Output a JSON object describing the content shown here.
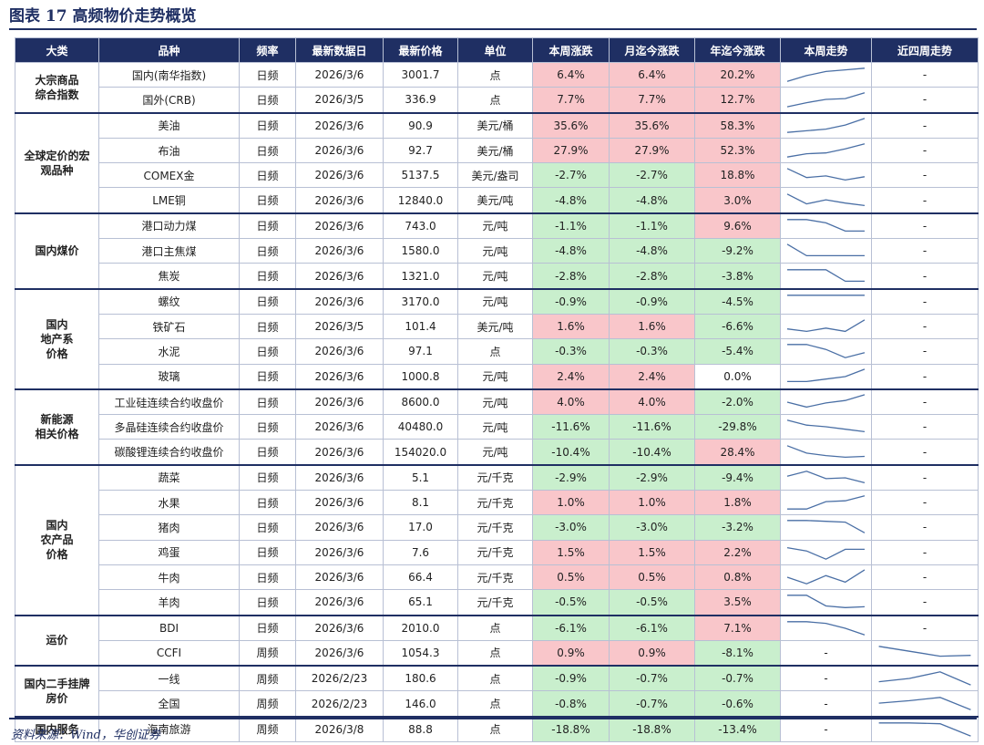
{
  "title": "图表 17   高频物价走势概览",
  "source": "资料来源：Wind，华创证券",
  "colors": {
    "header_bg": "#1f2f63",
    "positive": "#f9c6ca",
    "negative": "#c9efcd",
    "line": "#4a6fa5"
  },
  "headers": [
    "大类",
    "品种",
    "频率",
    "最新数据日",
    "最新价格",
    "单位",
    "本周涨跌",
    "月迄今涨跌",
    "年迄今涨跌",
    "本周走势",
    "近四周走势"
  ],
  "groups": [
    {
      "name": "大宗商品\n综合指数",
      "rows": [
        {
          "item": "国内(南华指数)",
          "freq": "日频",
          "date": "2026/3/6",
          "price": "3001.7",
          "unit": "点",
          "week": "6.4%",
          "month": "6.4%",
          "ytd": "20.2%",
          "week_trend": [
            0.1,
            0.45,
            0.7,
            0.8,
            0.9
          ],
          "four_week": "-"
        },
        {
          "item": "国外(CRB)",
          "freq": "日频",
          "date": "2026/3/5",
          "price": "336.9",
          "unit": "点",
          "week": "7.7%",
          "month": "7.7%",
          "ytd": "12.7%",
          "week_trend": [
            0.05,
            0.3,
            0.5,
            0.55,
            0.9
          ],
          "four_week": "-"
        }
      ]
    },
    {
      "name": "全球定价的宏\n观品种",
      "rows": [
        {
          "item": "美油",
          "freq": "日频",
          "date": "2026/3/6",
          "price": "90.9",
          "unit": "美元/桶",
          "week": "35.6%",
          "month": "35.6%",
          "ytd": "58.3%",
          "week_trend": [
            0.1,
            0.2,
            0.3,
            0.55,
            0.95
          ],
          "four_week": "-"
        },
        {
          "item": "布油",
          "freq": "日频",
          "date": "2026/3/6",
          "price": "92.7",
          "unit": "美元/桶",
          "week": "27.9%",
          "month": "27.9%",
          "ytd": "52.3%",
          "week_trend": [
            0.1,
            0.3,
            0.35,
            0.6,
            0.9
          ],
          "four_week": "-"
        },
        {
          "item": "COMEX金",
          "freq": "日频",
          "date": "2026/3/6",
          "price": "5137.5",
          "unit": "美元/盎司",
          "week": "-2.7%",
          "month": "-2.7%",
          "ytd": "18.8%",
          "week_trend": [
            0.9,
            0.35,
            0.45,
            0.2,
            0.4
          ],
          "four_week": "-"
        },
        {
          "item": "LME铜",
          "freq": "日频",
          "date": "2026/3/6",
          "price": "12840.0",
          "unit": "美元/吨",
          "week": "-4.8%",
          "month": "-4.8%",
          "ytd": "3.0%",
          "week_trend": [
            0.9,
            0.3,
            0.55,
            0.35,
            0.2
          ],
          "four_week": "-"
        }
      ]
    },
    {
      "name": "国内煤价",
      "rows": [
        {
          "item": "港口动力煤",
          "freq": "日频",
          "date": "2026/3/6",
          "price": "743.0",
          "unit": "元/吨",
          "week": "-1.1%",
          "month": "-1.1%",
          "ytd": "9.6%",
          "week_trend": [
            0.9,
            0.9,
            0.7,
            0.2,
            0.2
          ],
          "four_week": "-"
        },
        {
          "item": "港口主焦煤",
          "freq": "日频",
          "date": "2026/3/6",
          "price": "1580.0",
          "unit": "元/吨",
          "week": "-4.8%",
          "month": "-4.8%",
          "ytd": "-9.2%",
          "week_trend": [
            0.9,
            0.2,
            0.2,
            0.2,
            0.2
          ],
          "four_week": "-"
        },
        {
          "item": "焦炭",
          "freq": "日频",
          "date": "2026/3/6",
          "price": "1321.0",
          "unit": "元/吨",
          "week": "-2.8%",
          "month": "-2.8%",
          "ytd": "-3.8%",
          "week_trend": [
            0.9,
            0.9,
            0.9,
            0.2,
            0.2
          ],
          "four_week": "-"
        }
      ]
    },
    {
      "name": "国内\n地产系\n价格",
      "rows": [
        {
          "item": "螺纹",
          "freq": "日频",
          "date": "2026/3/6",
          "price": "3170.0",
          "unit": "元/吨",
          "week": "-0.9%",
          "month": "-0.9%",
          "ytd": "-4.5%",
          "week_trend": [
            0.9,
            0.9,
            0.9,
            0.9,
            0.9
          ],
          "four_week": "-"
        },
        {
          "item": "铁矿石",
          "freq": "日频",
          "date": "2026/3/5",
          "price": "101.4",
          "unit": "美元/吨",
          "week": "1.6%",
          "month": "1.6%",
          "ytd": "-6.6%",
          "week_trend": [
            0.35,
            0.2,
            0.4,
            0.2,
            0.9
          ],
          "four_week": "-"
        },
        {
          "item": "水泥",
          "freq": "日频",
          "date": "2026/3/6",
          "price": "97.1",
          "unit": "点",
          "week": "-0.3%",
          "month": "-0.3%",
          "ytd": "-5.4%",
          "week_trend": [
            0.9,
            0.9,
            0.6,
            0.1,
            0.4
          ],
          "four_week": "-"
        },
        {
          "item": "玻璃",
          "freq": "日频",
          "date": "2026/3/6",
          "price": "1000.8",
          "unit": "元/吨",
          "week": "2.4%",
          "month": "2.4%",
          "ytd": "0.0%",
          "week_trend": [
            0.2,
            0.2,
            0.35,
            0.5,
            0.95
          ],
          "four_week": "-"
        }
      ]
    },
    {
      "name": "新能源\n相关价格",
      "rows": [
        {
          "item": "工业硅连续合约收盘价",
          "freq": "日频",
          "date": "2026/3/6",
          "price": "8600.0",
          "unit": "元/吨",
          "week": "4.0%",
          "month": "4.0%",
          "ytd": "-2.0%",
          "week_trend": [
            0.5,
            0.2,
            0.45,
            0.6,
            0.95
          ],
          "four_week": "-"
        },
        {
          "item": "多晶硅连续合约收盘价",
          "freq": "日频",
          "date": "2026/3/6",
          "price": "40480.0",
          "unit": "元/吨",
          "week": "-11.6%",
          "month": "-11.6%",
          "ytd": "-29.8%",
          "week_trend": [
            0.9,
            0.6,
            0.5,
            0.35,
            0.2
          ],
          "four_week": "-"
        },
        {
          "item": "碳酸锂连续合约收盘价",
          "freq": "日频",
          "date": "2026/3/6",
          "price": "154020.0",
          "unit": "元/吨",
          "week": "-10.4%",
          "month": "-10.4%",
          "ytd": "28.4%",
          "week_trend": [
            0.9,
            0.45,
            0.3,
            0.2,
            0.25
          ],
          "four_week": "-"
        }
      ]
    },
    {
      "name": "国内\n农产品\n价格",
      "rows": [
        {
          "item": "蔬菜",
          "freq": "日频",
          "date": "2026/3/6",
          "price": "5.1",
          "unit": "元/千克",
          "week": "-2.9%",
          "month": "-2.9%",
          "ytd": "-9.4%",
          "week_trend": [
            0.6,
            0.9,
            0.45,
            0.5,
            0.2
          ],
          "four_week": "-"
        },
        {
          "item": "水果",
          "freq": "日频",
          "date": "2026/3/6",
          "price": "8.1",
          "unit": "元/千克",
          "week": "1.0%",
          "month": "1.0%",
          "ytd": "1.8%",
          "week_trend": [
            0.1,
            0.1,
            0.55,
            0.6,
            0.9
          ],
          "four_week": "-"
        },
        {
          "item": "猪肉",
          "freq": "日频",
          "date": "2026/3/6",
          "price": "17.0",
          "unit": "元/千克",
          "week": "-3.0%",
          "month": "-3.0%",
          "ytd": "-3.2%",
          "week_trend": [
            0.9,
            0.9,
            0.85,
            0.8,
            0.15
          ],
          "four_week": "-"
        },
        {
          "item": "鸡蛋",
          "freq": "日频",
          "date": "2026/3/6",
          "price": "7.6",
          "unit": "元/千克",
          "week": "1.5%",
          "month": "1.5%",
          "ytd": "2.2%",
          "week_trend": [
            0.8,
            0.6,
            0.1,
            0.7,
            0.7
          ],
          "four_week": "-"
        },
        {
          "item": "牛肉",
          "freq": "日频",
          "date": "2026/3/6",
          "price": "66.4",
          "unit": "元/千克",
          "week": "0.5%",
          "month": "0.5%",
          "ytd": "0.8%",
          "week_trend": [
            0.5,
            0.1,
            0.6,
            0.2,
            0.95
          ],
          "four_week": "-"
        },
        {
          "item": "羊肉",
          "freq": "日频",
          "date": "2026/3/6",
          "price": "65.1",
          "unit": "元/千克",
          "week": "-0.5%",
          "month": "-0.5%",
          "ytd": "3.5%",
          "week_trend": [
            0.9,
            0.9,
            0.25,
            0.15,
            0.2
          ],
          "four_week": "-"
        }
      ]
    },
    {
      "name": "运价",
      "rows": [
        {
          "item": "BDI",
          "freq": "日频",
          "date": "2026/3/6",
          "price": "2010.0",
          "unit": "点",
          "week": "-6.1%",
          "month": "-6.1%",
          "ytd": "7.1%",
          "week_trend": [
            0.9,
            0.9,
            0.8,
            0.5,
            0.1
          ],
          "four_week": "-"
        },
        {
          "item": "CCFI",
          "freq": "周频",
          "date": "2026/3/6",
          "price": "1054.3",
          "unit": "点",
          "week": "0.9%",
          "month": "0.9%",
          "ytd": "-8.1%",
          "week_trend": "-",
          "four_week": [
            0.9,
            0.6,
            0.3,
            0.35
          ]
        }
      ]
    },
    {
      "name": "国内二手挂牌\n房价",
      "rows": [
        {
          "item": "一线",
          "freq": "周频",
          "date": "2026/2/23",
          "price": "180.6",
          "unit": "点",
          "week": "-0.9%",
          "month": "-0.7%",
          "ytd": "-0.7%",
          "week_trend": "-",
          "four_week": [
            0.3,
            0.5,
            0.9,
            0.1
          ]
        },
        {
          "item": "全国",
          "freq": "周频",
          "date": "2026/2/23",
          "price": "146.0",
          "unit": "点",
          "week": "-0.8%",
          "month": "-0.7%",
          "ytd": "-0.6%",
          "week_trend": "-",
          "four_week": [
            0.55,
            0.7,
            0.9,
            0.15
          ]
        }
      ]
    },
    {
      "name": "国内服务",
      "rows": [
        {
          "item": "海南旅游",
          "freq": "周频",
          "date": "2026/3/8",
          "price": "88.8",
          "unit": "点",
          "week": "-18.8%",
          "month": "-18.8%",
          "ytd": "-13.4%",
          "week_trend": "-",
          "four_week": [
            0.9,
            0.9,
            0.85,
            0.1
          ]
        }
      ]
    }
  ]
}
